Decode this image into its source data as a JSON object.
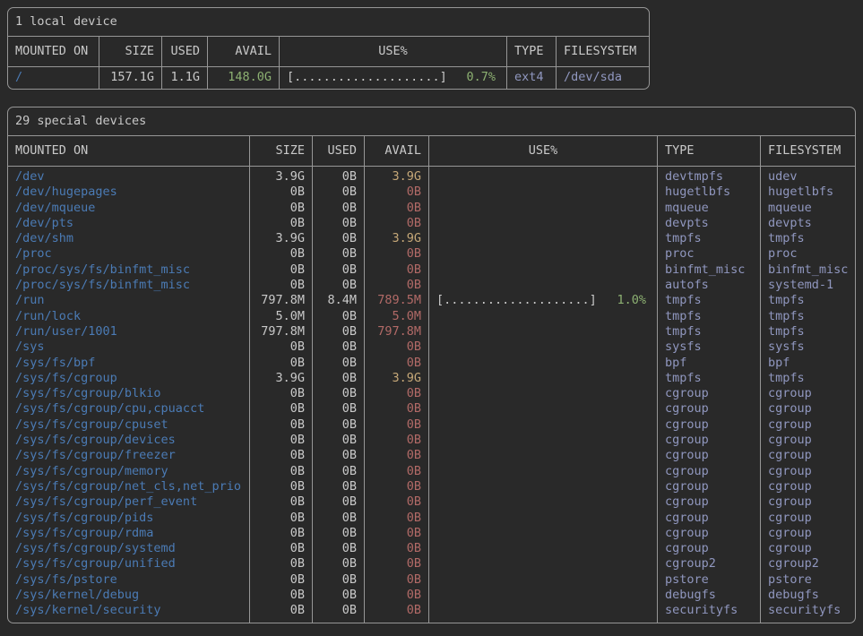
{
  "colors": {
    "bg": "#292929",
    "border": "#969696",
    "text": "#c9c9c9",
    "path_blue": "#4b7bb5",
    "fs_lavender": "#9097bf",
    "green": "#8db172",
    "red": "#b26a67",
    "yellow": "#c6a878"
  },
  "tables": [
    {
      "title": "1 local device",
      "columns": [
        {
          "key": "mounted",
          "label": "MOUNTED ON",
          "align": "left",
          "color": "path"
        },
        {
          "key": "size",
          "label": "SIZE",
          "align": "right"
        },
        {
          "key": "used",
          "label": "USED",
          "align": "right"
        },
        {
          "key": "avail",
          "label": "AVAIL",
          "align": "right",
          "color": "dynamic"
        },
        {
          "key": "use",
          "label": "USE%",
          "align": "center",
          "type": "bar"
        },
        {
          "key": "type",
          "label": "TYPE",
          "align": "left",
          "color": "fs"
        },
        {
          "key": "filesystem",
          "label": "FILESYSTEM",
          "align": "left",
          "color": "fs"
        }
      ],
      "rows": [
        {
          "mounted": "/",
          "size": "157.1G",
          "used": "1.1G",
          "avail": "148.0G",
          "avail_color": "green",
          "bar": "[....................]",
          "pct": "0.7%",
          "type": "ext4",
          "filesystem": "/dev/sda"
        }
      ]
    },
    {
      "title": "29 special devices",
      "columns": [
        {
          "key": "mounted",
          "label": "MOUNTED ON",
          "align": "left",
          "color": "path"
        },
        {
          "key": "size",
          "label": "SIZE",
          "align": "right"
        },
        {
          "key": "used",
          "label": "USED",
          "align": "right"
        },
        {
          "key": "avail",
          "label": "AVAIL",
          "align": "right",
          "color": "dynamic"
        },
        {
          "key": "use",
          "label": "USE%",
          "align": "center",
          "type": "bar"
        },
        {
          "key": "type",
          "label": "TYPE",
          "align": "left",
          "color": "fs"
        },
        {
          "key": "filesystem",
          "label": "FILESYSTEM",
          "align": "left",
          "color": "fs"
        }
      ],
      "rows": [
        {
          "mounted": "/dev",
          "size": "3.9G",
          "used": "0B",
          "avail": "3.9G",
          "avail_color": "yellow",
          "bar": "",
          "pct": "",
          "type": "devtmpfs",
          "filesystem": "udev"
        },
        {
          "mounted": "/dev/hugepages",
          "size": "0B",
          "used": "0B",
          "avail": "0B",
          "avail_color": "red",
          "bar": "",
          "pct": "",
          "type": "hugetlbfs",
          "filesystem": "hugetlbfs"
        },
        {
          "mounted": "/dev/mqueue",
          "size": "0B",
          "used": "0B",
          "avail": "0B",
          "avail_color": "red",
          "bar": "",
          "pct": "",
          "type": "mqueue",
          "filesystem": "mqueue"
        },
        {
          "mounted": "/dev/pts",
          "size": "0B",
          "used": "0B",
          "avail": "0B",
          "avail_color": "red",
          "bar": "",
          "pct": "",
          "type": "devpts",
          "filesystem": "devpts"
        },
        {
          "mounted": "/dev/shm",
          "size": "3.9G",
          "used": "0B",
          "avail": "3.9G",
          "avail_color": "yellow",
          "bar": "",
          "pct": "",
          "type": "tmpfs",
          "filesystem": "tmpfs"
        },
        {
          "mounted": "/proc",
          "size": "0B",
          "used": "0B",
          "avail": "0B",
          "avail_color": "red",
          "bar": "",
          "pct": "",
          "type": "proc",
          "filesystem": "proc"
        },
        {
          "mounted": "/proc/sys/fs/binfmt_misc",
          "size": "0B",
          "used": "0B",
          "avail": "0B",
          "avail_color": "red",
          "bar": "",
          "pct": "",
          "type": "binfmt_misc",
          "filesystem": "binfmt_misc"
        },
        {
          "mounted": "/proc/sys/fs/binfmt_misc",
          "size": "0B",
          "used": "0B",
          "avail": "0B",
          "avail_color": "red",
          "bar": "",
          "pct": "",
          "type": "autofs",
          "filesystem": "systemd-1"
        },
        {
          "mounted": "/run",
          "size": "797.8M",
          "used": "8.4M",
          "avail": "789.5M",
          "avail_color": "red",
          "bar": "[....................]",
          "pct": "1.0%",
          "type": "tmpfs",
          "filesystem": "tmpfs"
        },
        {
          "mounted": "/run/lock",
          "size": "5.0M",
          "used": "0B",
          "avail": "5.0M",
          "avail_color": "red",
          "bar": "",
          "pct": "",
          "type": "tmpfs",
          "filesystem": "tmpfs"
        },
        {
          "mounted": "/run/user/1001",
          "size": "797.8M",
          "used": "0B",
          "avail": "797.8M",
          "avail_color": "red",
          "bar": "",
          "pct": "",
          "type": "tmpfs",
          "filesystem": "tmpfs"
        },
        {
          "mounted": "/sys",
          "size": "0B",
          "used": "0B",
          "avail": "0B",
          "avail_color": "red",
          "bar": "",
          "pct": "",
          "type": "sysfs",
          "filesystem": "sysfs"
        },
        {
          "mounted": "/sys/fs/bpf",
          "size": "0B",
          "used": "0B",
          "avail": "0B",
          "avail_color": "red",
          "bar": "",
          "pct": "",
          "type": "bpf",
          "filesystem": "bpf"
        },
        {
          "mounted": "/sys/fs/cgroup",
          "size": "3.9G",
          "used": "0B",
          "avail": "3.9G",
          "avail_color": "yellow",
          "bar": "",
          "pct": "",
          "type": "tmpfs",
          "filesystem": "tmpfs"
        },
        {
          "mounted": "/sys/fs/cgroup/blkio",
          "size": "0B",
          "used": "0B",
          "avail": "0B",
          "avail_color": "red",
          "bar": "",
          "pct": "",
          "type": "cgroup",
          "filesystem": "cgroup"
        },
        {
          "mounted": "/sys/fs/cgroup/cpu,cpuacct",
          "size": "0B",
          "used": "0B",
          "avail": "0B",
          "avail_color": "red",
          "bar": "",
          "pct": "",
          "type": "cgroup",
          "filesystem": "cgroup"
        },
        {
          "mounted": "/sys/fs/cgroup/cpuset",
          "size": "0B",
          "used": "0B",
          "avail": "0B",
          "avail_color": "red",
          "bar": "",
          "pct": "",
          "type": "cgroup",
          "filesystem": "cgroup"
        },
        {
          "mounted": "/sys/fs/cgroup/devices",
          "size": "0B",
          "used": "0B",
          "avail": "0B",
          "avail_color": "red",
          "bar": "",
          "pct": "",
          "type": "cgroup",
          "filesystem": "cgroup"
        },
        {
          "mounted": "/sys/fs/cgroup/freezer",
          "size": "0B",
          "used": "0B",
          "avail": "0B",
          "avail_color": "red",
          "bar": "",
          "pct": "",
          "type": "cgroup",
          "filesystem": "cgroup"
        },
        {
          "mounted": "/sys/fs/cgroup/memory",
          "size": "0B",
          "used": "0B",
          "avail": "0B",
          "avail_color": "red",
          "bar": "",
          "pct": "",
          "type": "cgroup",
          "filesystem": "cgroup"
        },
        {
          "mounted": "/sys/fs/cgroup/net_cls,net_prio",
          "size": "0B",
          "used": "0B",
          "avail": "0B",
          "avail_color": "red",
          "bar": "",
          "pct": "",
          "type": "cgroup",
          "filesystem": "cgroup"
        },
        {
          "mounted": "/sys/fs/cgroup/perf_event",
          "size": "0B",
          "used": "0B",
          "avail": "0B",
          "avail_color": "red",
          "bar": "",
          "pct": "",
          "type": "cgroup",
          "filesystem": "cgroup"
        },
        {
          "mounted": "/sys/fs/cgroup/pids",
          "size": "0B",
          "used": "0B",
          "avail": "0B",
          "avail_color": "red",
          "bar": "",
          "pct": "",
          "type": "cgroup",
          "filesystem": "cgroup"
        },
        {
          "mounted": "/sys/fs/cgroup/rdma",
          "size": "0B",
          "used": "0B",
          "avail": "0B",
          "avail_color": "red",
          "bar": "",
          "pct": "",
          "type": "cgroup",
          "filesystem": "cgroup"
        },
        {
          "mounted": "/sys/fs/cgroup/systemd",
          "size": "0B",
          "used": "0B",
          "avail": "0B",
          "avail_color": "red",
          "bar": "",
          "pct": "",
          "type": "cgroup",
          "filesystem": "cgroup"
        },
        {
          "mounted": "/sys/fs/cgroup/unified",
          "size": "0B",
          "used": "0B",
          "avail": "0B",
          "avail_color": "red",
          "bar": "",
          "pct": "",
          "type": "cgroup2",
          "filesystem": "cgroup2"
        },
        {
          "mounted": "/sys/fs/pstore",
          "size": "0B",
          "used": "0B",
          "avail": "0B",
          "avail_color": "red",
          "bar": "",
          "pct": "",
          "type": "pstore",
          "filesystem": "pstore"
        },
        {
          "mounted": "/sys/kernel/debug",
          "size": "0B",
          "used": "0B",
          "avail": "0B",
          "avail_color": "red",
          "bar": "",
          "pct": "",
          "type": "debugfs",
          "filesystem": "debugfs"
        },
        {
          "mounted": "/sys/kernel/security",
          "size": "0B",
          "used": "0B",
          "avail": "0B",
          "avail_color": "red",
          "bar": "",
          "pct": "",
          "type": "securityfs",
          "filesystem": "securityfs"
        }
      ]
    }
  ]
}
